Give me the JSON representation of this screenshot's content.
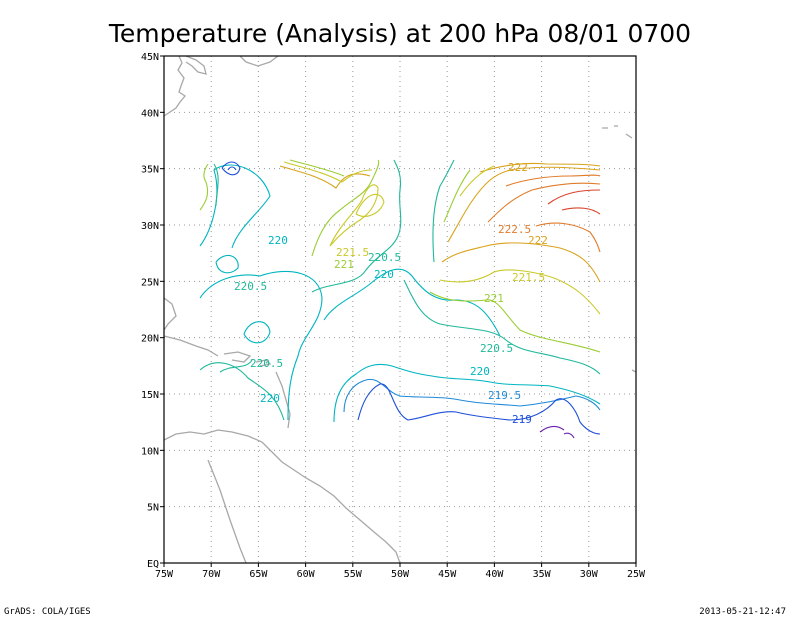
{
  "title": "Temperature (Analysis) at 200 hPa 08/01 0700",
  "footer_left": "GrADS: COLA/IGES",
  "footer_right": "2013-05-21-12:47",
  "lon_ticks": [
    "75W",
    "70W",
    "65W",
    "60W",
    "55W",
    "50W",
    "45W",
    "40W",
    "35W",
    "30W",
    "25W"
  ],
  "lat_ticks": [
    "EQ",
    "5N",
    "10N",
    "15N",
    "20N",
    "25N",
    "30N",
    "35N",
    "40N",
    "45N"
  ],
  "contour_labels": [
    {
      "text": "222",
      "color": "#d9a21b"
    },
    {
      "text": "222.5",
      "color": "#e07b2a"
    },
    {
      "text": "222",
      "color": "#d9a21b"
    },
    {
      "text": "221.5",
      "color": "#c9c92a"
    },
    {
      "text": "221",
      "color": "#9acd32"
    },
    {
      "text": "221.5",
      "color": "#c9c92a"
    },
    {
      "text": "221",
      "color": "#9acd32"
    },
    {
      "text": "220.5",
      "color": "#1fb89a"
    },
    {
      "text": "220",
      "color": "#00b5c0"
    },
    {
      "text": "220",
      "color": "#00b5c0"
    },
    {
      "text": "220.5",
      "color": "#1fb89a"
    },
    {
      "text": "220.5",
      "color": "#1fb89a"
    },
    {
      "text": "220.5",
      "color": "#1fb89a"
    },
    {
      "text": "220",
      "color": "#00b5c0"
    },
    {
      "text": "220",
      "color": "#00b5c0"
    },
    {
      "text": "219.5",
      "color": "#1f8ad8"
    },
    {
      "text": "219",
      "color": "#1f50d8"
    }
  ],
  "colors": {
    "c219": "#1f50d8",
    "c219_low": "#6a1fb0",
    "c219_5": "#1f8ad8",
    "c220": "#00b5c0",
    "c220_5": "#1fb89a",
    "c221": "#9acd32",
    "c221_5": "#c9c92a",
    "c222": "#d9a21b",
    "c222_5": "#e07b2a",
    "c223": "#d8432a",
    "coast": "#a8a8a8"
  }
}
